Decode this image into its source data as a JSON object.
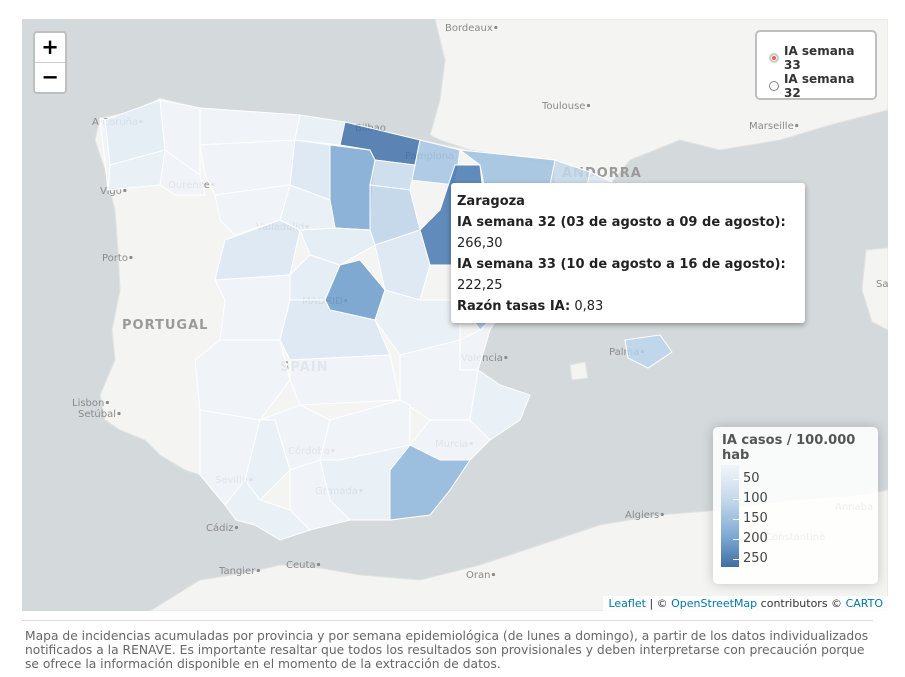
{
  "map": {
    "zoom": {
      "zoom_in": "+",
      "zoom_out": "−"
    },
    "layers": [
      {
        "label": "IA semana 33",
        "selected": true
      },
      {
        "label": "IA semana 32",
        "selected": false
      }
    ],
    "places": [
      "Bordeaux",
      "Toulouse",
      "Marseille",
      "A Coruña",
      "Vigo",
      "Ourense",
      "Porto",
      "PORTUGAL",
      "Valladolid",
      "MADRID",
      "SPAIN",
      "Lisbon",
      "Setúbal",
      "Valencia",
      "Palma",
      "Murcia",
      "Córdoba",
      "Sevilla",
      "Granada",
      "Cádiz",
      "Tangier",
      "Ceuta",
      "Oran",
      "Algiers",
      "Annaba",
      "Constantine",
      "ANDORRA",
      "Pamplona",
      "Bilbao",
      "Sassari"
    ],
    "tooltip": {
      "title": "Zaragoza",
      "rows": [
        {
          "label": "IA semana 32 (03 de agosto a 09 de agosto):",
          "value": "266,30"
        },
        {
          "label": "IA semana 33 (10 de agosto a 16 de agosto):",
          "value": "222,25"
        },
        {
          "label": "Razón tasas IA:",
          "value": "0,83"
        }
      ]
    },
    "legend": {
      "title": "IA casos / 100.000 hab",
      "ticks": [
        50,
        100,
        150,
        200,
        250
      ]
    },
    "attribution": {
      "leaflet": "Leaflet",
      "sep": "| ©",
      "osm": "OpenStreetMap",
      "contrib": "contributors ©",
      "carto": "CARTO"
    }
  },
  "caption": "Mapa de incidencias acumuladas por provincia y por semana epidemiológica (de lunes a domingo), a partir de los datos individualizados notificados a la RENAVE. Es importante resaltar que todos los resultados son provisionales y deben interpretarse con precaución porque se ofrece la información disponible en el momento de la extracción de datos."
}
